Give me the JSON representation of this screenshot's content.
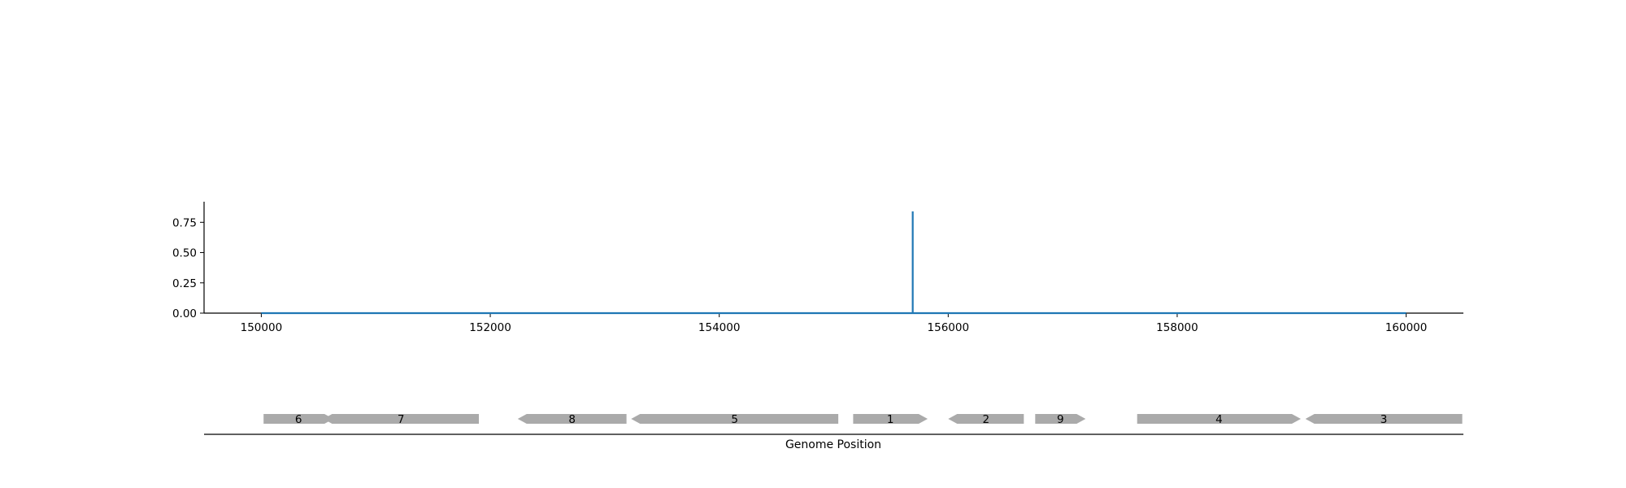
{
  "chart_data": [
    {
      "type": "line",
      "title": "",
      "xlabel": "",
      "ylabel": "",
      "xlim": [
        149500,
        160500
      ],
      "ylim": [
        0,
        0.92
      ],
      "x_ticks": [
        150000,
        152000,
        154000,
        156000,
        158000,
        160000
      ],
      "y_ticks": [
        0.0,
        0.25,
        0.5,
        0.75
      ],
      "y_tick_labels": [
        "0.00",
        "0.25",
        "0.50",
        "0.75"
      ],
      "grid": false,
      "line_color": "#1f77b4",
      "series": [
        {
          "x": [
            150000,
            155690,
            155690,
            155690,
            160000
          ],
          "y": [
            0,
            0,
            0.84,
            0,
            0
          ]
        }
      ]
    },
    {
      "type": "gene-map",
      "xlabel": "Genome Position",
      "xlim": [
        149500,
        160500
      ],
      "gene_color": "#aaaaaa",
      "genes": [
        {
          "label": "6",
          "start": 150020,
          "end": 150630,
          "strand": "+"
        },
        {
          "label": "7",
          "start": 150540,
          "end": 151900,
          "strand": "-"
        },
        {
          "label": "8",
          "start": 152240,
          "end": 153190,
          "strand": "-"
        },
        {
          "label": "5",
          "start": 153230,
          "end": 155040,
          "strand": "-"
        },
        {
          "label": "1",
          "start": 155170,
          "end": 155820,
          "strand": "+"
        },
        {
          "label": "2",
          "start": 156000,
          "end": 156660,
          "strand": "-"
        },
        {
          "label": "9",
          "start": 156760,
          "end": 157200,
          "strand": "+"
        },
        {
          "label": "4",
          "start": 157650,
          "end": 159080,
          "strand": "+"
        },
        {
          "label": "3",
          "start": 159120,
          "end": 160490,
          "strand": "-"
        }
      ]
    }
  ]
}
